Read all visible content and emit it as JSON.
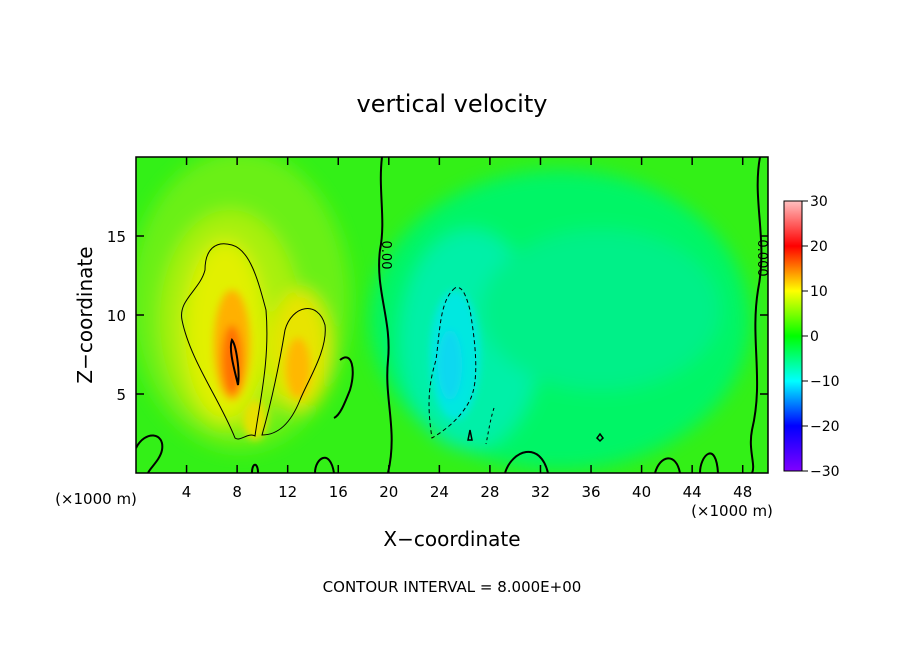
{
  "chart_data": {
    "type": "heatmap",
    "title": "vertical velocity",
    "xlabel": "X−coordinate",
    "ylabel": "Z−coordinate",
    "x_unit_left": "(×1000 m)",
    "x_unit_right": "(×1000 m)",
    "xlim": [
      0,
      50
    ],
    "ylim": [
      0,
      20
    ],
    "x_ticks": [
      4,
      8,
      12,
      16,
      20,
      24,
      28,
      32,
      36,
      40,
      44,
      48
    ],
    "y_ticks": [
      5,
      10,
      15
    ],
    "zlim": [
      -30,
      30
    ],
    "colorbar_ticks": [
      30,
      20,
      10,
      0,
      -10,
      -20,
      -30
    ],
    "colorbar_tick_labels": [
      "30",
      "20",
      "10",
      "0",
      "−10",
      "−20",
      "−30"
    ],
    "footer": "CONTOUR INTERVAL = 8.000E+00",
    "contour_labels": [
      {
        "text": "0.00",
        "x": 19.5,
        "y": 14.0
      },
      {
        "text": "0.000",
        "x": 49.5,
        "y": 13.5
      }
    ],
    "field_features": [
      {
        "kind": "updraft",
        "x": 8,
        "z": 8,
        "peak": 18
      },
      {
        "kind": "updraft",
        "x": 13,
        "z": 6.5,
        "peak": 12
      },
      {
        "kind": "downdraft",
        "x": 25.5,
        "z": 7.5,
        "peak": -8
      }
    ],
    "colormap": [
      "#8000ff",
      "#0000ff",
      "#00ffff",
      "#00ff00",
      "#ffff00",
      "#ff0000",
      "#ffc0c0"
    ]
  }
}
